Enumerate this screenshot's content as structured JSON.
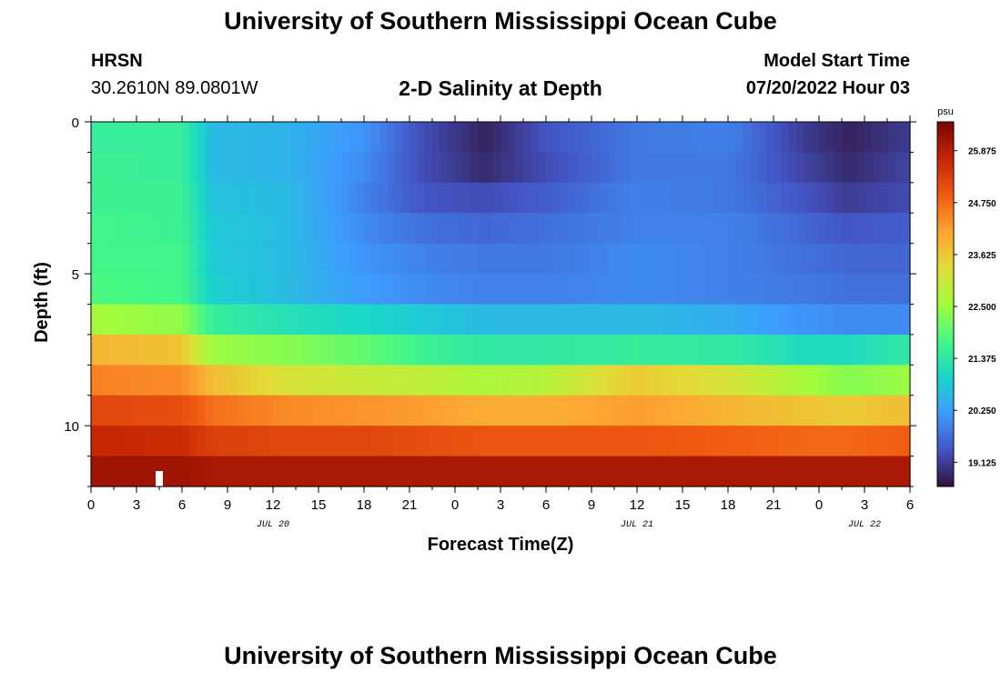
{
  "header": {
    "title": "University of Southern Mississippi Ocean Cube",
    "station_code": "HRSN",
    "station_coords": "30.2610N  89.0801W",
    "subtitle": "2-D Salinity at Depth",
    "model_start_label": "Model Start Time",
    "model_start_time": "07/20/2022 Hour 03"
  },
  "footer": {
    "title": "University of Southern Mississippi Ocean Cube"
  },
  "chart_data": {
    "type": "heatmap",
    "title": "2-D Salinity at Depth",
    "xlabel": "Forecast Time(Z)",
    "ylabel": "Depth (ft)",
    "x_tick_labels": [
      "0",
      "3",
      "6",
      "9",
      "12",
      "15",
      "18",
      "21",
      "0",
      "3",
      "6",
      "9",
      "12",
      "15",
      "18",
      "21",
      "0",
      "3",
      "6"
    ],
    "date_labels": [
      {
        "text": "JUL 20",
        "tick_index": 4
      },
      {
        "text": "JUL 21",
        "tick_index": 12
      },
      {
        "text": "JUL 22",
        "tick_index": 17
      }
    ],
    "xlim_hours": [
      0,
      54
    ],
    "y_tick_labels": [
      "0",
      "5",
      "10"
    ],
    "ylim_ft": [
      0,
      12
    ],
    "colorbar": {
      "unit": "psu",
      "range": [
        18.6,
        26.5
      ],
      "ticks": [
        "25.875",
        "24.750",
        "23.625",
        "22.500",
        "21.375",
        "20.250",
        "19.125"
      ],
      "tick_values": [
        25.875,
        24.75,
        23.625,
        22.5,
        21.375,
        20.25,
        19.125
      ],
      "colors": [
        "#30123b",
        "#4454c4",
        "#3e9bfe",
        "#18d6cb",
        "#46f884",
        "#a2fc3c",
        "#e1dd37",
        "#fea431",
        "#f05b12",
        "#c42503",
        "#7a0403"
      ]
    },
    "depth_layers_ft": [
      0.5,
      1.5,
      2.5,
      3.5,
      4.5,
      5.5,
      6.5,
      7.5,
      8.5,
      9.5,
      10.5,
      11.5
    ],
    "time_keypoints_hours": [
      0,
      6,
      8,
      13,
      18,
      22,
      26,
      30,
      36,
      42,
      47,
      50,
      54
    ],
    "salinity_psu": [
      [
        21.5,
        21.5,
        20.6,
        20.5,
        20.1,
        19.3,
        18.8,
        19.4,
        19.8,
        19.9,
        19.1,
        18.8,
        19.1
      ],
      [
        21.6,
        21.5,
        20.6,
        20.5,
        20.0,
        19.3,
        18.9,
        19.3,
        19.8,
        19.8,
        19.2,
        18.9,
        19.2
      ],
      [
        21.6,
        21.6,
        20.7,
        20.6,
        19.9,
        19.4,
        19.3,
        19.5,
        19.9,
        19.8,
        19.4,
        19.1,
        19.3
      ],
      [
        21.7,
        21.6,
        20.8,
        20.6,
        20.0,
        19.7,
        19.6,
        19.7,
        19.9,
        19.9,
        19.6,
        19.4,
        19.5
      ],
      [
        21.7,
        21.7,
        20.8,
        20.6,
        20.1,
        19.9,
        19.8,
        19.8,
        20.0,
        19.9,
        19.7,
        19.6,
        19.6
      ],
      [
        21.8,
        21.7,
        20.9,
        20.6,
        20.2,
        20.0,
        19.9,
        19.9,
        20.0,
        19.9,
        19.8,
        19.7,
        19.7
      ],
      [
        22.6,
        22.4,
        21.5,
        21.2,
        21.0,
        20.8,
        20.6,
        20.6,
        20.6,
        20.4,
        20.1,
        20.0,
        20.0
      ],
      [
        23.9,
        23.7,
        22.5,
        22.3,
        22.0,
        21.6,
        21.4,
        21.4,
        21.5,
        21.4,
        21.1,
        21.1,
        21.4
      ],
      [
        24.5,
        24.4,
        23.8,
        23.2,
        23.0,
        22.9,
        22.7,
        22.8,
        23.6,
        23.2,
        22.6,
        22.3,
        22.5
      ],
      [
        25.2,
        25.1,
        24.7,
        24.4,
        24.3,
        24.2,
        24.0,
        24.0,
        24.2,
        23.9,
        23.7,
        23.6,
        23.8
      ],
      [
        25.7,
        25.6,
        25.3,
        25.2,
        25.2,
        25.1,
        25.0,
        25.0,
        25.0,
        24.9,
        24.8,
        24.8,
        24.9
      ],
      [
        26.1,
        26.1,
        26.0,
        26.0,
        26.0,
        26.0,
        26.0,
        26.0,
        26.0,
        26.0,
        26.0,
        26.0,
        26.0
      ]
    ],
    "current_time_marker_hours": 4.5
  }
}
